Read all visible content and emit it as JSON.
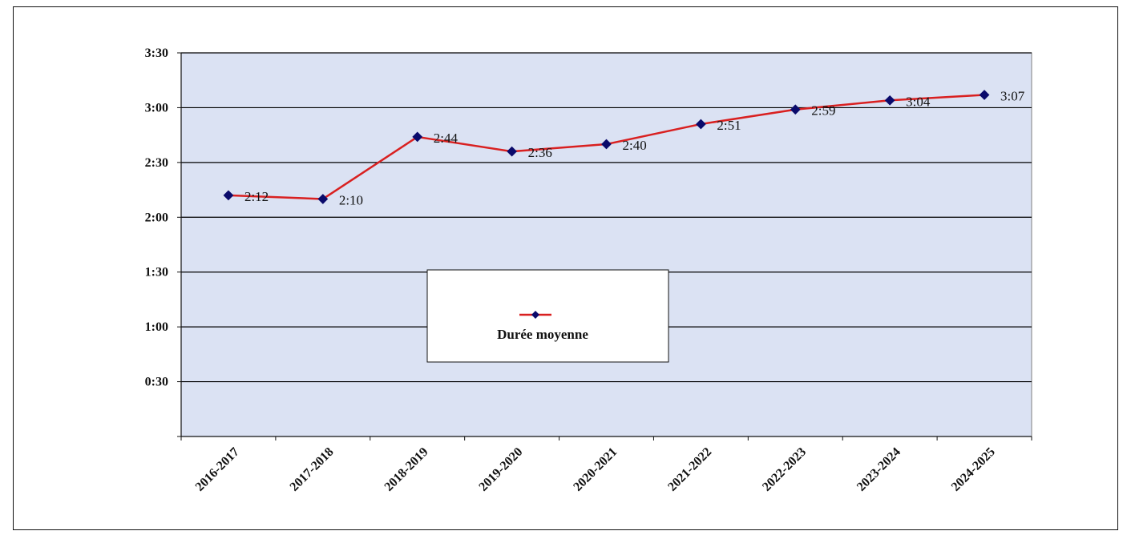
{
  "chart_data": {
    "type": "line",
    "categories": [
      "2016-2017",
      "2017-2018",
      "2018-2019",
      "2019-2020",
      "2020-2021",
      "2021-2022",
      "2022-2023",
      "2023-2024",
      "2024-2025"
    ],
    "series": [
      {
        "name": "Durée moyenne",
        "values_minutes": [
          132,
          130,
          164,
          156,
          160,
          171,
          179,
          184,
          187
        ],
        "data_labels": [
          "2:12",
          "2:10",
          "2:44",
          "2:36",
          "2:40",
          "2:51",
          "2:59",
          "3:04",
          "3:07"
        ]
      }
    ],
    "y_ticks": [
      "0:30",
      "1:00",
      "1:30",
      "2:00",
      "2:30",
      "3:00",
      "3:30"
    ],
    "y_tick_values_minutes": [
      30,
      60,
      90,
      120,
      150,
      180,
      210
    ],
    "ylim_minutes": [
      0,
      210
    ],
    "grid": true,
    "legend_position": "center",
    "colors": {
      "plot_background": "#dbe2f3",
      "line": "#d92020",
      "marker": "#0a0a6b",
      "gridline": "#000000"
    }
  }
}
